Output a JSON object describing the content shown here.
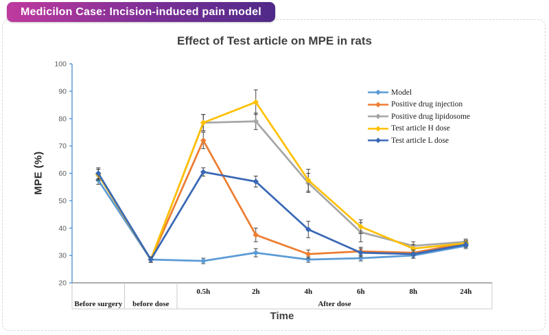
{
  "header": {
    "badge": "Medicilon Case: Incision-induced pain model",
    "badge_gradient": [
      "#BF3A9E",
      "#4F2A88"
    ]
  },
  "chart": {
    "title": "Effect of Test article on MPE in rats",
    "y_label": "MPE (%)",
    "x_label": "Time"
  },
  "chart_data": {
    "type": "line",
    "marker": "diamond",
    "grid": false,
    "error_bars": true,
    "legend_position": "inside-top-right",
    "axis_color": "#5B9BD5",
    "error_bar_color": "#404040",
    "ylim": [
      20,
      100
    ],
    "yticks": [
      20,
      30,
      40,
      50,
      60,
      70,
      80,
      90,
      100
    ],
    "categories": [
      "Before surgery",
      "before dose",
      "0.5h",
      "2h",
      "4h",
      "6h",
      "8h",
      "24h"
    ],
    "axis_groups": [
      {
        "label": "Before surgery",
        "span": [
          0,
          0
        ]
      },
      {
        "label": "before dose",
        "span": [
          1,
          1
        ]
      },
      {
        "label": "After dose",
        "span": [
          2,
          7
        ]
      }
    ],
    "series": [
      {
        "name": "Model",
        "color": "#5B9BD5",
        "values": [
          57.5,
          28.5,
          28,
          31,
          28.5,
          29,
          30,
          33.5
        ],
        "errors": [
          1.5,
          1,
          1,
          1.5,
          1,
          1,
          1,
          1
        ]
      },
      {
        "name": "Positive drug injection",
        "color": "#ED7D31",
        "values": [
          59.5,
          28.5,
          72,
          37.5,
          30.5,
          31.5,
          31,
          34.5
        ],
        "errors": [
          2,
          1,
          3,
          2.5,
          1.5,
          1.5,
          1,
          1
        ]
      },
      {
        "name": "Positive drug lipidosome",
        "color": "#A6A6A6",
        "values": [
          59.5,
          28.5,
          78.5,
          79,
          56.5,
          38.5,
          33.5,
          35
        ],
        "errors": [
          2,
          1,
          3,
          3,
          3.5,
          3.5,
          1.5,
          1
        ]
      },
      {
        "name": "Test article H dose",
        "color": "#FFC000",
        "values": [
          59.5,
          28.5,
          78.5,
          86,
          57.5,
          40.5,
          32.5,
          34.5
        ],
        "errors": [
          2,
          1,
          3,
          4.5,
          4,
          2.5,
          1.5,
          1
        ]
      },
      {
        "name": "Test article L dose",
        "color": "#3968B5",
        "values": [
          60,
          28.5,
          60.5,
          57,
          39.5,
          31,
          30.5,
          34
        ],
        "errors": [
          2,
          1,
          1.5,
          2,
          3,
          1.5,
          1.5,
          1
        ]
      }
    ]
  }
}
